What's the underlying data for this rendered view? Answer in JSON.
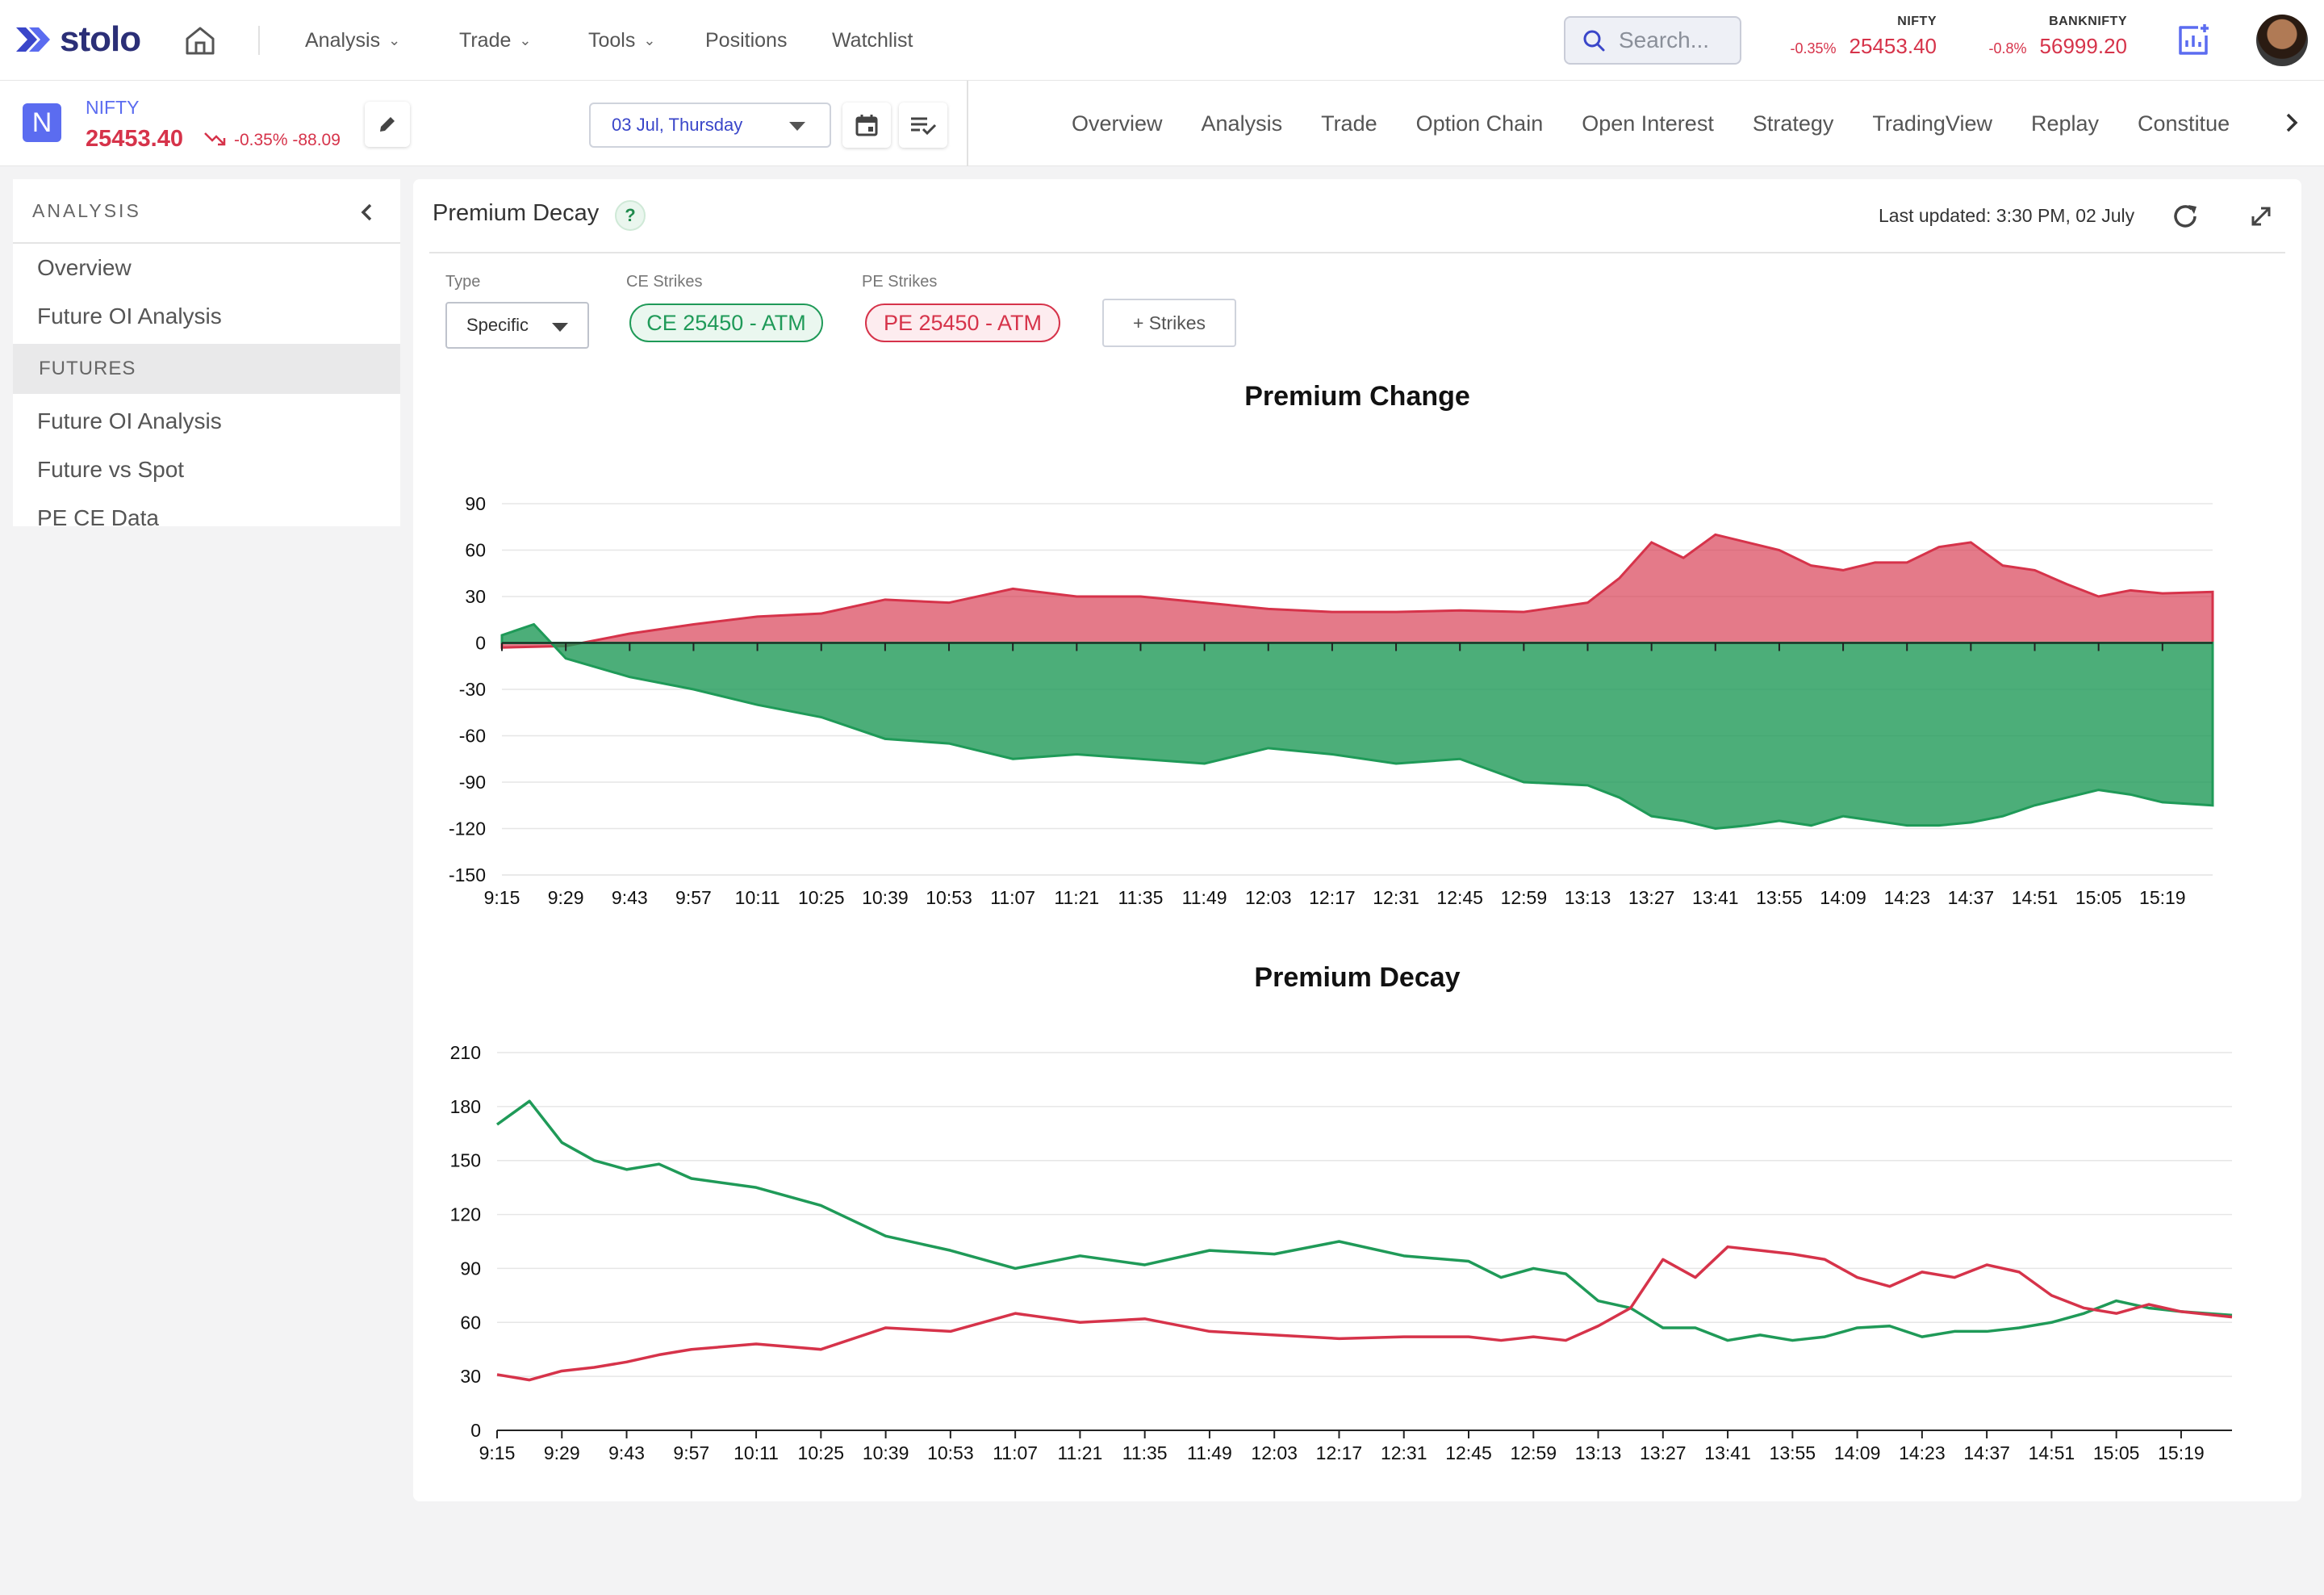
{
  "app": {
    "brand": "stolo",
    "nav": [
      {
        "label": "Analysis",
        "dropdown": true
      },
      {
        "label": "Trade",
        "dropdown": true
      },
      {
        "label": "Tools",
        "dropdown": true
      },
      {
        "label": "Positions",
        "dropdown": false
      },
      {
        "label": "Watchlist",
        "dropdown": false
      }
    ],
    "search_placeholder": "Search...",
    "tickers": [
      {
        "name": "NIFTY",
        "change": "-0.35%",
        "value": "25453.40"
      },
      {
        "name": "BANKNIFTY",
        "change": "-0.8%",
        "value": "56999.20"
      }
    ]
  },
  "instrument": {
    "badge": "N",
    "name": "NIFTY",
    "price": "25453.40",
    "change": "-0.35% -88.09",
    "date": "03 Jul, Thursday"
  },
  "tabs": [
    "Overview",
    "Analysis",
    "Trade",
    "Option Chain",
    "Open Interest",
    "Strategy",
    "TradingView",
    "Replay",
    "Constitue"
  ],
  "sidebar": {
    "header": "ANALYSIS",
    "items_top": [
      "Overview",
      "Future OI Analysis"
    ],
    "section": "FUTURES",
    "items_section": [
      "Future OI Analysis",
      "Future vs Spot",
      "PE CE Data"
    ]
  },
  "panel": {
    "title": "Premium Decay",
    "help": "?",
    "last_updated": "Last updated: 3:30 PM, 02 July",
    "filters": {
      "type_label": "Type",
      "type_value": "Specific",
      "ce_label": "CE Strikes",
      "ce_value": "CE 25450 - ATM",
      "pe_label": "PE Strikes",
      "pe_value": "PE 25450 - ATM",
      "add_strikes": "+ Strikes"
    }
  },
  "colors": {
    "ce": "#1f9a58",
    "pe": "#d6334a",
    "accent": "#5b6cf0"
  },
  "chart_data": [
    {
      "type": "area",
      "title": "Premium Change",
      "xlabel": "",
      "ylabel": "",
      "ylim": [
        -150,
        90
      ],
      "yticks": [
        90,
        60,
        30,
        0,
        -30,
        -60,
        -90,
        -120,
        -150
      ],
      "x_ticks": [
        "9:15",
        "9:29",
        "9:43",
        "9:57",
        "10:11",
        "10:25",
        "10:39",
        "10:53",
        "11:07",
        "11:21",
        "11:35",
        "11:49",
        "12:03",
        "12:17",
        "12:31",
        "12:45",
        "12:59",
        "13:13",
        "13:27",
        "13:41",
        "13:55",
        "14:09",
        "14:23",
        "14:37",
        "14:51",
        "15:05",
        "15:19"
      ],
      "grid": true,
      "series": [
        {
          "color": "#d6334a",
          "x": [
            "9:15",
            "9:29",
            "9:43",
            "9:57",
            "10:11",
            "10:25",
            "10:39",
            "10:53",
            "11:07",
            "11:21",
            "11:35",
            "11:49",
            "12:03",
            "12:17",
            "12:31",
            "12:45",
            "12:59",
            "13:13",
            "13:20",
            "13:27",
            "13:34",
            "13:41",
            "13:48",
            "13:55",
            "14:02",
            "14:09",
            "14:16",
            "14:23",
            "14:30",
            "14:37",
            "14:44",
            "14:51",
            "14:58",
            "15:05",
            "15:12",
            "15:19",
            "15:30"
          ],
          "values": [
            -3,
            -2,
            6,
            12,
            17,
            19,
            28,
            26,
            35,
            30,
            30,
            26,
            22,
            20,
            20,
            21,
            20,
            26,
            42,
            65,
            55,
            70,
            65,
            60,
            50,
            47,
            52,
            52,
            62,
            65,
            50,
            47,
            38,
            30,
            34,
            32,
            33
          ]
        },
        {
          "color": "#1f9a58",
          "x": [
            "9:15",
            "9:22",
            "9:29",
            "9:43",
            "9:57",
            "10:11",
            "10:25",
            "10:39",
            "10:53",
            "11:07",
            "11:21",
            "11:35",
            "11:49",
            "12:03",
            "12:17",
            "12:31",
            "12:45",
            "12:59",
            "13:13",
            "13:20",
            "13:27",
            "13:34",
            "13:41",
            "13:48",
            "13:55",
            "14:02",
            "14:09",
            "14:16",
            "14:23",
            "14:30",
            "14:37",
            "14:44",
            "14:51",
            "14:58",
            "15:05",
            "15:12",
            "15:19",
            "15:30"
          ],
          "values": [
            5,
            12,
            -10,
            -22,
            -30,
            -40,
            -48,
            -62,
            -65,
            -75,
            -72,
            -75,
            -78,
            -68,
            -72,
            -78,
            -75,
            -90,
            -92,
            -100,
            -112,
            -115,
            -120,
            -118,
            -115,
            -118,
            -112,
            -115,
            -118,
            -118,
            -116,
            -112,
            -105,
            -100,
            -95,
            -98,
            -103,
            -105
          ]
        }
      ]
    },
    {
      "type": "line",
      "title": "Premium Decay",
      "xlabel": "",
      "ylabel": "",
      "ylim": [
        0,
        210
      ],
      "yticks": [
        210,
        180,
        150,
        120,
        90,
        60,
        30,
        0
      ],
      "x_ticks": [
        "9:15",
        "9:29",
        "9:43",
        "9:57",
        "10:11",
        "10:25",
        "10:39",
        "10:53",
        "11:07",
        "11:21",
        "11:35",
        "11:49",
        "12:03",
        "12:17",
        "12:31",
        "12:45",
        "12:59",
        "13:13",
        "13:27",
        "13:41",
        "13:55",
        "14:09",
        "14:23",
        "14:37",
        "14:51",
        "15:05",
        "15:19"
      ],
      "grid": true,
      "series": [
        {
          "color": "#1f9a58",
          "x": [
            "9:15",
            "9:22",
            "9:29",
            "9:36",
            "9:43",
            "9:50",
            "9:57",
            "10:11",
            "10:25",
            "10:39",
            "10:53",
            "11:07",
            "11:21",
            "11:35",
            "11:49",
            "12:03",
            "12:17",
            "12:31",
            "12:45",
            "12:52",
            "12:59",
            "13:06",
            "13:13",
            "13:20",
            "13:27",
            "13:34",
            "13:41",
            "13:48",
            "13:55",
            "14:02",
            "14:09",
            "14:16",
            "14:23",
            "14:30",
            "14:37",
            "14:44",
            "14:51",
            "14:58",
            "15:05",
            "15:12",
            "15:19",
            "15:30"
          ],
          "values": [
            170,
            183,
            160,
            150,
            145,
            148,
            140,
            135,
            125,
            108,
            100,
            90,
            97,
            92,
            100,
            98,
            105,
            97,
            94,
            85,
            90,
            87,
            72,
            68,
            57,
            57,
            50,
            53,
            50,
            52,
            57,
            58,
            52,
            55,
            55,
            57,
            60,
            65,
            72,
            68,
            66,
            64
          ]
        },
        {
          "color": "#d6334a",
          "x": [
            "9:15",
            "9:22",
            "9:29",
            "9:36",
            "9:43",
            "9:50",
            "9:57",
            "10:11",
            "10:25",
            "10:39",
            "10:53",
            "11:07",
            "11:21",
            "11:35",
            "11:49",
            "12:03",
            "12:17",
            "12:31",
            "12:45",
            "12:52",
            "12:59",
            "13:06",
            "13:13",
            "13:20",
            "13:27",
            "13:34",
            "13:41",
            "13:48",
            "13:55",
            "14:02",
            "14:09",
            "14:16",
            "14:23",
            "14:30",
            "14:37",
            "14:44",
            "14:51",
            "14:58",
            "15:05",
            "15:12",
            "15:19",
            "15:30"
          ],
          "values": [
            31,
            28,
            33,
            35,
            38,
            42,
            45,
            48,
            45,
            57,
            55,
            65,
            60,
            62,
            55,
            53,
            51,
            52,
            52,
            50,
            52,
            50,
            58,
            68,
            95,
            85,
            102,
            100,
            98,
            95,
            85,
            80,
            88,
            85,
            92,
            88,
            75,
            68,
            65,
            70,
            66,
            63
          ]
        }
      ]
    }
  ]
}
